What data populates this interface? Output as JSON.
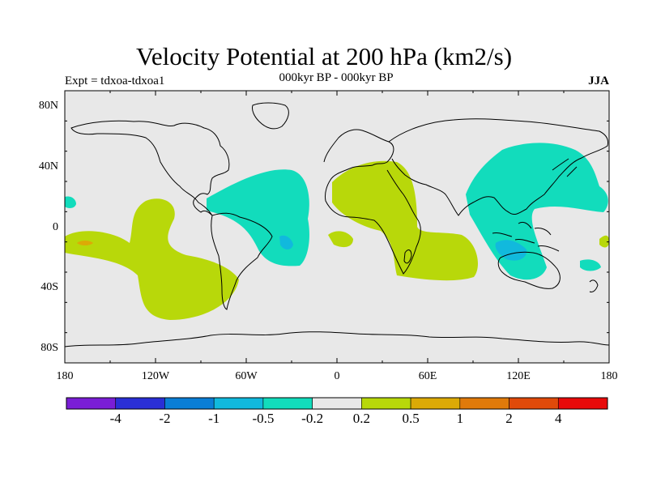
{
  "title": "Velocity Potential at 200 hPa (km2/s)",
  "subtitle": "000kyr BP - 000kyr BP",
  "experiment": "Expt = tdxoa-tdxoa1",
  "season": "JJA",
  "map": {
    "lon_range": [
      -180,
      180
    ],
    "lat_range": [
      -90,
      90
    ],
    "lat_ticks": [
      "80N",
      "40N",
      "0",
      "40S",
      "80S"
    ],
    "lon_ticks": [
      "180",
      "120W",
      "60W",
      "0",
      "60E",
      "120E",
      "180"
    ],
    "ocean_color": "#e8e8e8",
    "coastline_color": "#000000"
  },
  "colorbar": {
    "colors": [
      "#7a1ed6",
      "#2a2fd6",
      "#0a7ed6",
      "#11b9dd",
      "#12dcbc",
      "#e8e8e8",
      "#b8d80a",
      "#dcaa06",
      "#e07a0a",
      "#e04a0a",
      "#e80a0a"
    ],
    "labels": [
      "-4",
      "-2",
      "-1",
      "-0.5",
      "-0.2",
      "0.2",
      "0.5",
      "1",
      "2",
      "4"
    ]
  },
  "chart_data": {
    "type": "heatmap",
    "title": "Velocity Potential at 200 hPa (km2/s)",
    "subtitle": "000kyr BP - 000kyr BP",
    "units": "km2/s",
    "regions": [
      {
        "level": "-0.5 to -0.2",
        "area": "tropical Atlantic and northern South America"
      },
      {
        "level": "-0.5 to -0.2",
        "area": "Asia, western Pacific and Maritime Continent"
      },
      {
        "level": "-1 to -0.5",
        "area": "near Indonesia and northwestern Australia"
      },
      {
        "level": "0.2 to 0.5",
        "area": "Africa, Middle East and southern Indian Ocean"
      },
      {
        "level": "0.2 to 0.5",
        "area": "southeast Pacific"
      },
      {
        "level": "0.5 to 1",
        "area": "small patch in central Pacific"
      }
    ]
  }
}
